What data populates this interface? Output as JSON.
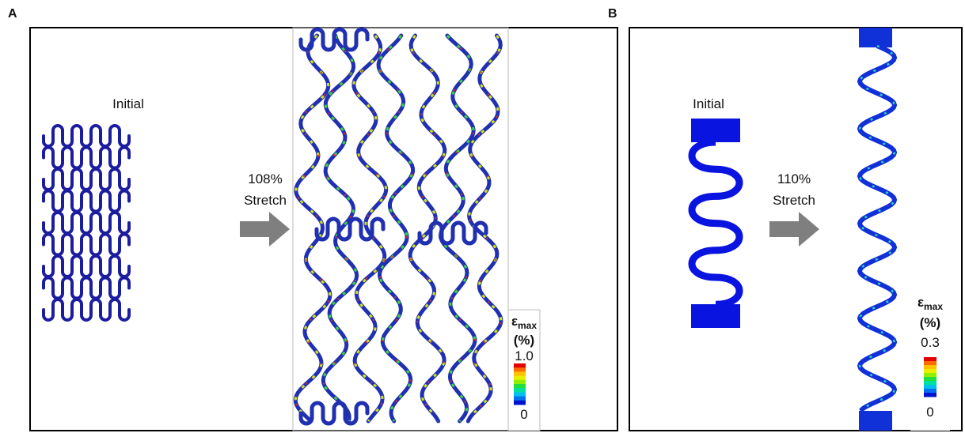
{
  "panels": [
    {
      "label": "A",
      "initial_label": "Initial",
      "stretch_amount": "108%",
      "stretch_word": "Stretch",
      "colorbar": {
        "symbol": "ε",
        "subscript": "max",
        "unit": "(%)",
        "max": "1.0",
        "min": "0"
      }
    },
    {
      "label": "B",
      "initial_label": "Initial",
      "stretch_amount": "110%",
      "stretch_word": "Stretch",
      "colorbar": {
        "symbol": "ε",
        "subscript": "max",
        "unit": "(%)",
        "max": "0.3",
        "min": "0"
      }
    }
  ]
}
